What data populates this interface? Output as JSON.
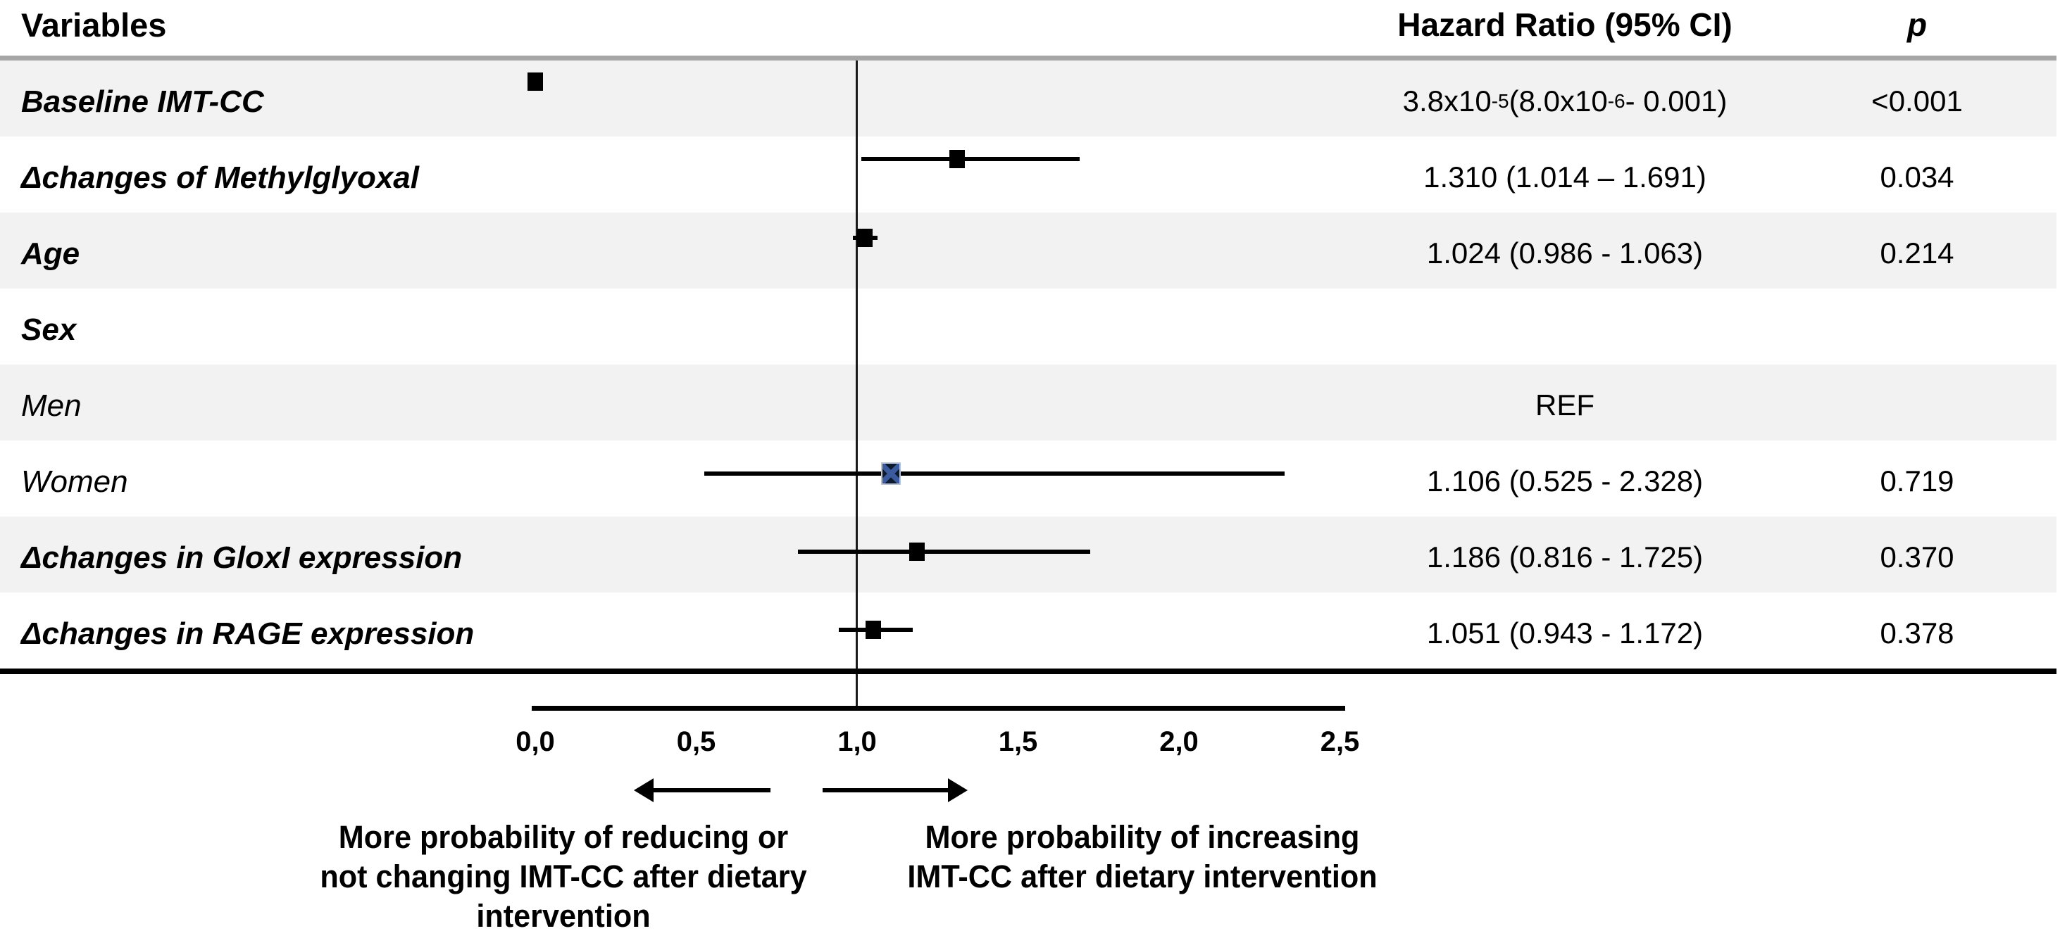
{
  "header": {
    "variables": "Variables",
    "hazard_ratio": "Hazard Ratio (95% CI)",
    "p": "p"
  },
  "chart_data": {
    "type": "forest",
    "title": "",
    "axis": {
      "min": 0,
      "max": 2.5,
      "tick_values": [
        0,
        0.5,
        1.0,
        1.5,
        2.0,
        2.5
      ],
      "tick_labels": [
        "0,0",
        "0,5",
        "1,0",
        "1,5",
        "2,0",
        "2,5"
      ],
      "reference_line": 1.0,
      "grid": false
    },
    "rows": [
      {
        "label": "Baseline IMT-CC",
        "style": "bold-italic",
        "shade": true,
        "estimate": 3.8e-05,
        "ci_low": 8e-06,
        "ci_high": 0.001,
        "hr_text": "3.8x10^-5 (8.0x10^-6 - 0.001)",
        "p_text": "<0.001",
        "marker": "black-square"
      },
      {
        "label": "Δchanges of Methylglyoxal",
        "style": "bold-italic",
        "shade": false,
        "estimate": 1.31,
        "ci_low": 1.014,
        "ci_high": 1.691,
        "hr_text": "1.310 (1.014 – 1.691)",
        "p_text": "0.034",
        "marker": "black-square"
      },
      {
        "label": "Age",
        "style": "bold-italic",
        "shade": true,
        "estimate": 1.024,
        "ci_low": 0.986,
        "ci_high": 1.063,
        "hr_text": "1.024 (0.986 - 1.063)",
        "p_text": "0.214",
        "marker": "black-square"
      },
      {
        "label": "Sex",
        "style": "bold-italic",
        "shade": false,
        "estimate": null,
        "ci_low": null,
        "ci_high": null,
        "hr_text": "",
        "p_text": "",
        "marker": "none"
      },
      {
        "label": "Men",
        "style": "italic",
        "shade": true,
        "estimate": null,
        "ci_low": null,
        "ci_high": null,
        "hr_text": "REF",
        "p_text": "",
        "marker": "none"
      },
      {
        "label": "Women",
        "style": "italic",
        "shade": false,
        "estimate": 1.106,
        "ci_low": 0.525,
        "ci_high": 2.328,
        "hr_text": "1.106 (0.525 - 2.328)",
        "p_text": "0.719",
        "marker": "navy-x-square"
      },
      {
        "label": "Δchanges in GloxI expression",
        "style": "bold-italic",
        "shade": true,
        "estimate": 1.186,
        "ci_low": 0.816,
        "ci_high": 1.725,
        "hr_text": "1.186 (0.816 - 1.725)",
        "p_text": "0.370",
        "marker": "black-square"
      },
      {
        "label": "Δchanges in RAGE expression",
        "style": "bold-italic",
        "shade": false,
        "estimate": 1.051,
        "ci_low": 0.943,
        "ci_high": 1.172,
        "hr_text": "1.051 (0.943 - 1.172)",
        "p_text": "0.378",
        "marker": "black-square"
      }
    ],
    "annotations": {
      "left_arrow_label": "More probability of reducing or\nnot changing IMT-CC after dietary\nintervention",
      "right_arrow_label": "More probability of increasing\nIMT-CC after dietary intervention"
    },
    "legend_position": "none"
  },
  "colors": {
    "row_shade": "#f2f2f2",
    "divider_gray": "#a6a6a6",
    "marker_black": "#000000",
    "navy_marker_fill": "#0e1a30",
    "navy_marker_x": "#3c5a9e"
  }
}
